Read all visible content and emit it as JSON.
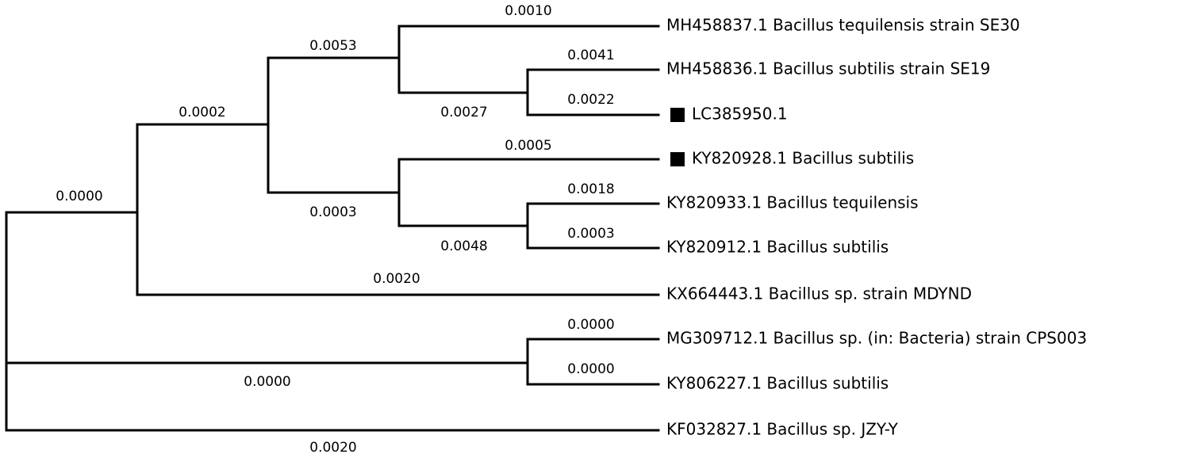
{
  "leaves": [
    {
      "label": "MH458837.1 Bacillus tequilensis strain SE30",
      "marked": false
    },
    {
      "label": "MH458836.1 Bacillus subtilis strain SE19",
      "marked": false
    },
    {
      "label": "LC385950.1",
      "marked": true
    },
    {
      "label": "KY820928.1 Bacillus subtilis",
      "marked": true
    },
    {
      "label": "KY820933.1 Bacillus tequilensis",
      "marked": false
    },
    {
      "label": "KY820912.1 Bacillus subtilis",
      "marked": false
    },
    {
      "label": "KX664443.1 Bacillus sp. strain MDYND",
      "marked": false
    },
    {
      "label": "MG309712.1 Bacillus sp. (in: Bacteria) strain CPS003",
      "marked": false
    },
    {
      "label": "KY806227.1 Bacillus subtilis",
      "marked": false
    },
    {
      "label": "KF032827.1 Bacillus sp. JZY-Y",
      "marked": false
    }
  ],
  "branch_lengths": [
    "0.0000",
    "0.0002",
    "0.0053",
    "0.0010",
    "0.0027",
    "0.0041",
    "0.0022",
    "0.0003",
    "0.0005",
    "0.0048",
    "0.0018",
    "0.0003",
    "0.0020",
    "0.0000",
    "0.0000",
    "0.0000",
    "0.0020"
  ]
}
